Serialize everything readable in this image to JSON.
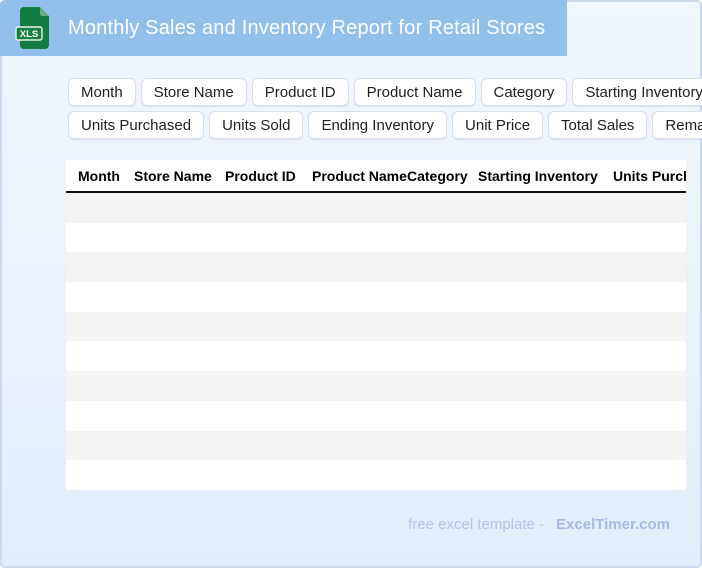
{
  "titlebar": {
    "title": "Monthly Sales and Inventory Report for Retail Stores",
    "file_badge": "XLS"
  },
  "field_chips": {
    "row1": [
      "Month",
      "Store Name",
      "Product ID",
      "Product Name",
      "Category",
      "Starting Inventory"
    ],
    "row2": [
      "Units Purchased",
      "Units Sold",
      "Ending Inventory",
      "Unit Price",
      "Total Sales",
      "Remarks"
    ]
  },
  "table": {
    "columns": [
      "Month",
      "Store Name",
      "Product ID",
      "Product Name",
      "Category",
      "Starting Inventory",
      "Units Purchased"
    ],
    "empty_row_count": 10,
    "stripe_color": "#f4f4f4"
  },
  "footer": {
    "tagline": "free excel template -",
    "brand": "ExcelTimer.com"
  },
  "colors": {
    "topbar_blue": "#92c0eb",
    "icon_green_dark": "#127c41",
    "icon_green_fold": "#67ab85",
    "page_border": "#ccd8ec",
    "footer_text": "#b7c2ea",
    "footer_brand": "#a9b7e8"
  }
}
